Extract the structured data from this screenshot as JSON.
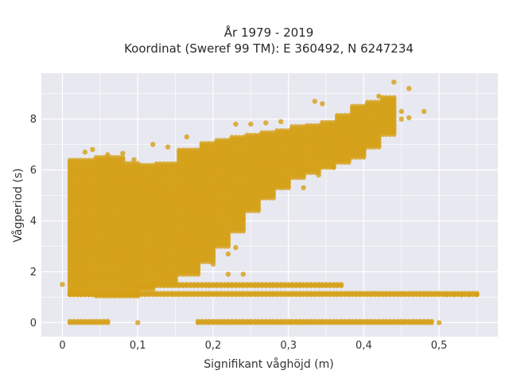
{
  "chart_data": {
    "type": "scatter",
    "title": "År 1979 - 2019",
    "subtitle": "Koordinat (Sweref 99 TM): E 360492, N 6247234",
    "xlabel": "Signifikant våghöjd (m)",
    "ylabel": "Vågperiod (s)",
    "xlim": [
      -0.028,
      0.578
    ],
    "ylim": [
      -0.55,
      9.8
    ],
    "x_ticks": [
      0,
      0.1,
      0.2,
      0.3,
      0.4,
      0.5
    ],
    "x_tick_labels": [
      "0",
      "0,1",
      "0,2",
      "0,3",
      "0,4",
      "0,5"
    ],
    "y_ticks": [
      0,
      2,
      4,
      6,
      8
    ],
    "y_tick_labels": [
      "0",
      "2",
      "4",
      "6",
      "8"
    ],
    "grid": true,
    "legend": "none",
    "marker_color": "#D4A017",
    "background_color": "#E8E8F0",
    "grid_color": "#FFFFFF",
    "x_step": 0.005,
    "columns": [
      {
        "x0": 0.01,
        "x1": 0.04,
        "ymin": 1.1,
        "ymax": 6.4
      },
      {
        "x0": 0.045,
        "x1": 0.08,
        "ymin": 1.05,
        "ymax": 6.5
      },
      {
        "x0": 0.085,
        "x1": 0.1,
        "ymin": 1.05,
        "ymax": 6.3
      },
      {
        "x0": 0.105,
        "x1": 0.12,
        "ymin": 1.3,
        "ymax": 6.2
      },
      {
        "x0": 0.125,
        "x1": 0.15,
        "ymin": 1.6,
        "ymax": 6.3
      },
      {
        "x0": 0.155,
        "x1": 0.18,
        "ymin": 1.9,
        "ymax": 6.8
      },
      {
        "x0": 0.185,
        "x1": 0.2,
        "ymin": 2.4,
        "ymax": 7.1
      },
      {
        "x0": 0.205,
        "x1": 0.22,
        "ymin": 3.0,
        "ymax": 7.2
      },
      {
        "x0": 0.225,
        "x1": 0.24,
        "ymin": 3.6,
        "ymax": 7.3
      },
      {
        "x0": 0.245,
        "x1": 0.26,
        "ymin": 4.4,
        "ymax": 7.4
      },
      {
        "x0": 0.265,
        "x1": 0.28,
        "ymin": 4.9,
        "ymax": 7.5
      },
      {
        "x0": 0.285,
        "x1": 0.3,
        "ymin": 5.3,
        "ymax": 7.6
      },
      {
        "x0": 0.305,
        "x1": 0.32,
        "ymin": 5.7,
        "ymax": 7.7
      },
      {
        "x0": 0.325,
        "x1": 0.34,
        "ymin": 5.9,
        "ymax": 7.8
      },
      {
        "x0": 0.345,
        "x1": 0.36,
        "ymin": 6.1,
        "ymax": 7.9
      },
      {
        "x0": 0.365,
        "x1": 0.38,
        "ymin": 6.3,
        "ymax": 8.2
      },
      {
        "x0": 0.385,
        "x1": 0.4,
        "ymin": 6.5,
        "ymax": 8.5
      },
      {
        "x0": 0.405,
        "x1": 0.42,
        "ymin": 6.9,
        "ymax": 8.7
      },
      {
        "x0": 0.425,
        "x1": 0.44,
        "ymin": 7.4,
        "ymax": 8.9
      }
    ],
    "bands": [
      {
        "x0": 0.01,
        "x1": 0.55,
        "y": 1.1
      },
      {
        "x0": 0.1,
        "x1": 0.37,
        "y": 1.45
      },
      {
        "x0": 0.01,
        "x1": 0.06,
        "y": 0.0
      },
      {
        "x0": 0.18,
        "x1": 0.49,
        "y": 0.0
      }
    ],
    "points": [
      {
        "x": 0.0,
        "y": 1.5
      },
      {
        "x": 0.1,
        "y": 0.0
      },
      {
        "x": 0.5,
        "y": 0.0
      },
      {
        "x": 0.55,
        "y": 1.1
      },
      {
        "x": 0.54,
        "y": 1.1
      },
      {
        "x": 0.53,
        "y": 1.1
      },
      {
        "x": 0.52,
        "y": 1.1
      },
      {
        "x": 0.51,
        "y": 1.1
      },
      {
        "x": 0.12,
        "y": 7.0
      },
      {
        "x": 0.165,
        "y": 7.3
      },
      {
        "x": 0.06,
        "y": 6.6
      },
      {
        "x": 0.08,
        "y": 6.65
      },
      {
        "x": 0.04,
        "y": 6.8
      },
      {
        "x": 0.03,
        "y": 6.7
      },
      {
        "x": 0.05,
        "y": 6.1
      },
      {
        "x": 0.095,
        "y": 6.4
      },
      {
        "x": 0.14,
        "y": 6.9
      },
      {
        "x": 0.175,
        "y": 6.5
      },
      {
        "x": 0.23,
        "y": 7.8
      },
      {
        "x": 0.25,
        "y": 7.8
      },
      {
        "x": 0.27,
        "y": 7.85
      },
      {
        "x": 0.29,
        "y": 7.9
      },
      {
        "x": 0.335,
        "y": 8.7
      },
      {
        "x": 0.345,
        "y": 8.6
      },
      {
        "x": 0.44,
        "y": 9.45
      },
      {
        "x": 0.46,
        "y": 9.2
      },
      {
        "x": 0.45,
        "y": 8.3
      },
      {
        "x": 0.45,
        "y": 8.0
      },
      {
        "x": 0.48,
        "y": 8.3
      },
      {
        "x": 0.46,
        "y": 8.05
      },
      {
        "x": 0.42,
        "y": 8.9
      },
      {
        "x": 0.24,
        "y": 4.05
      },
      {
        "x": 0.23,
        "y": 2.95
      },
      {
        "x": 0.22,
        "y": 2.7
      },
      {
        "x": 0.2,
        "y": 2.3
      },
      {
        "x": 0.24,
        "y": 1.9
      },
      {
        "x": 0.22,
        "y": 1.9
      },
      {
        "x": 0.14,
        "y": 1.8
      },
      {
        "x": 0.32,
        "y": 5.3
      },
      {
        "x": 0.34,
        "y": 5.8
      },
      {
        "x": 0.36,
        "y": 6.1
      },
      {
        "x": 0.4,
        "y": 6.8
      },
      {
        "x": 0.38,
        "y": 6.4
      }
    ]
  }
}
